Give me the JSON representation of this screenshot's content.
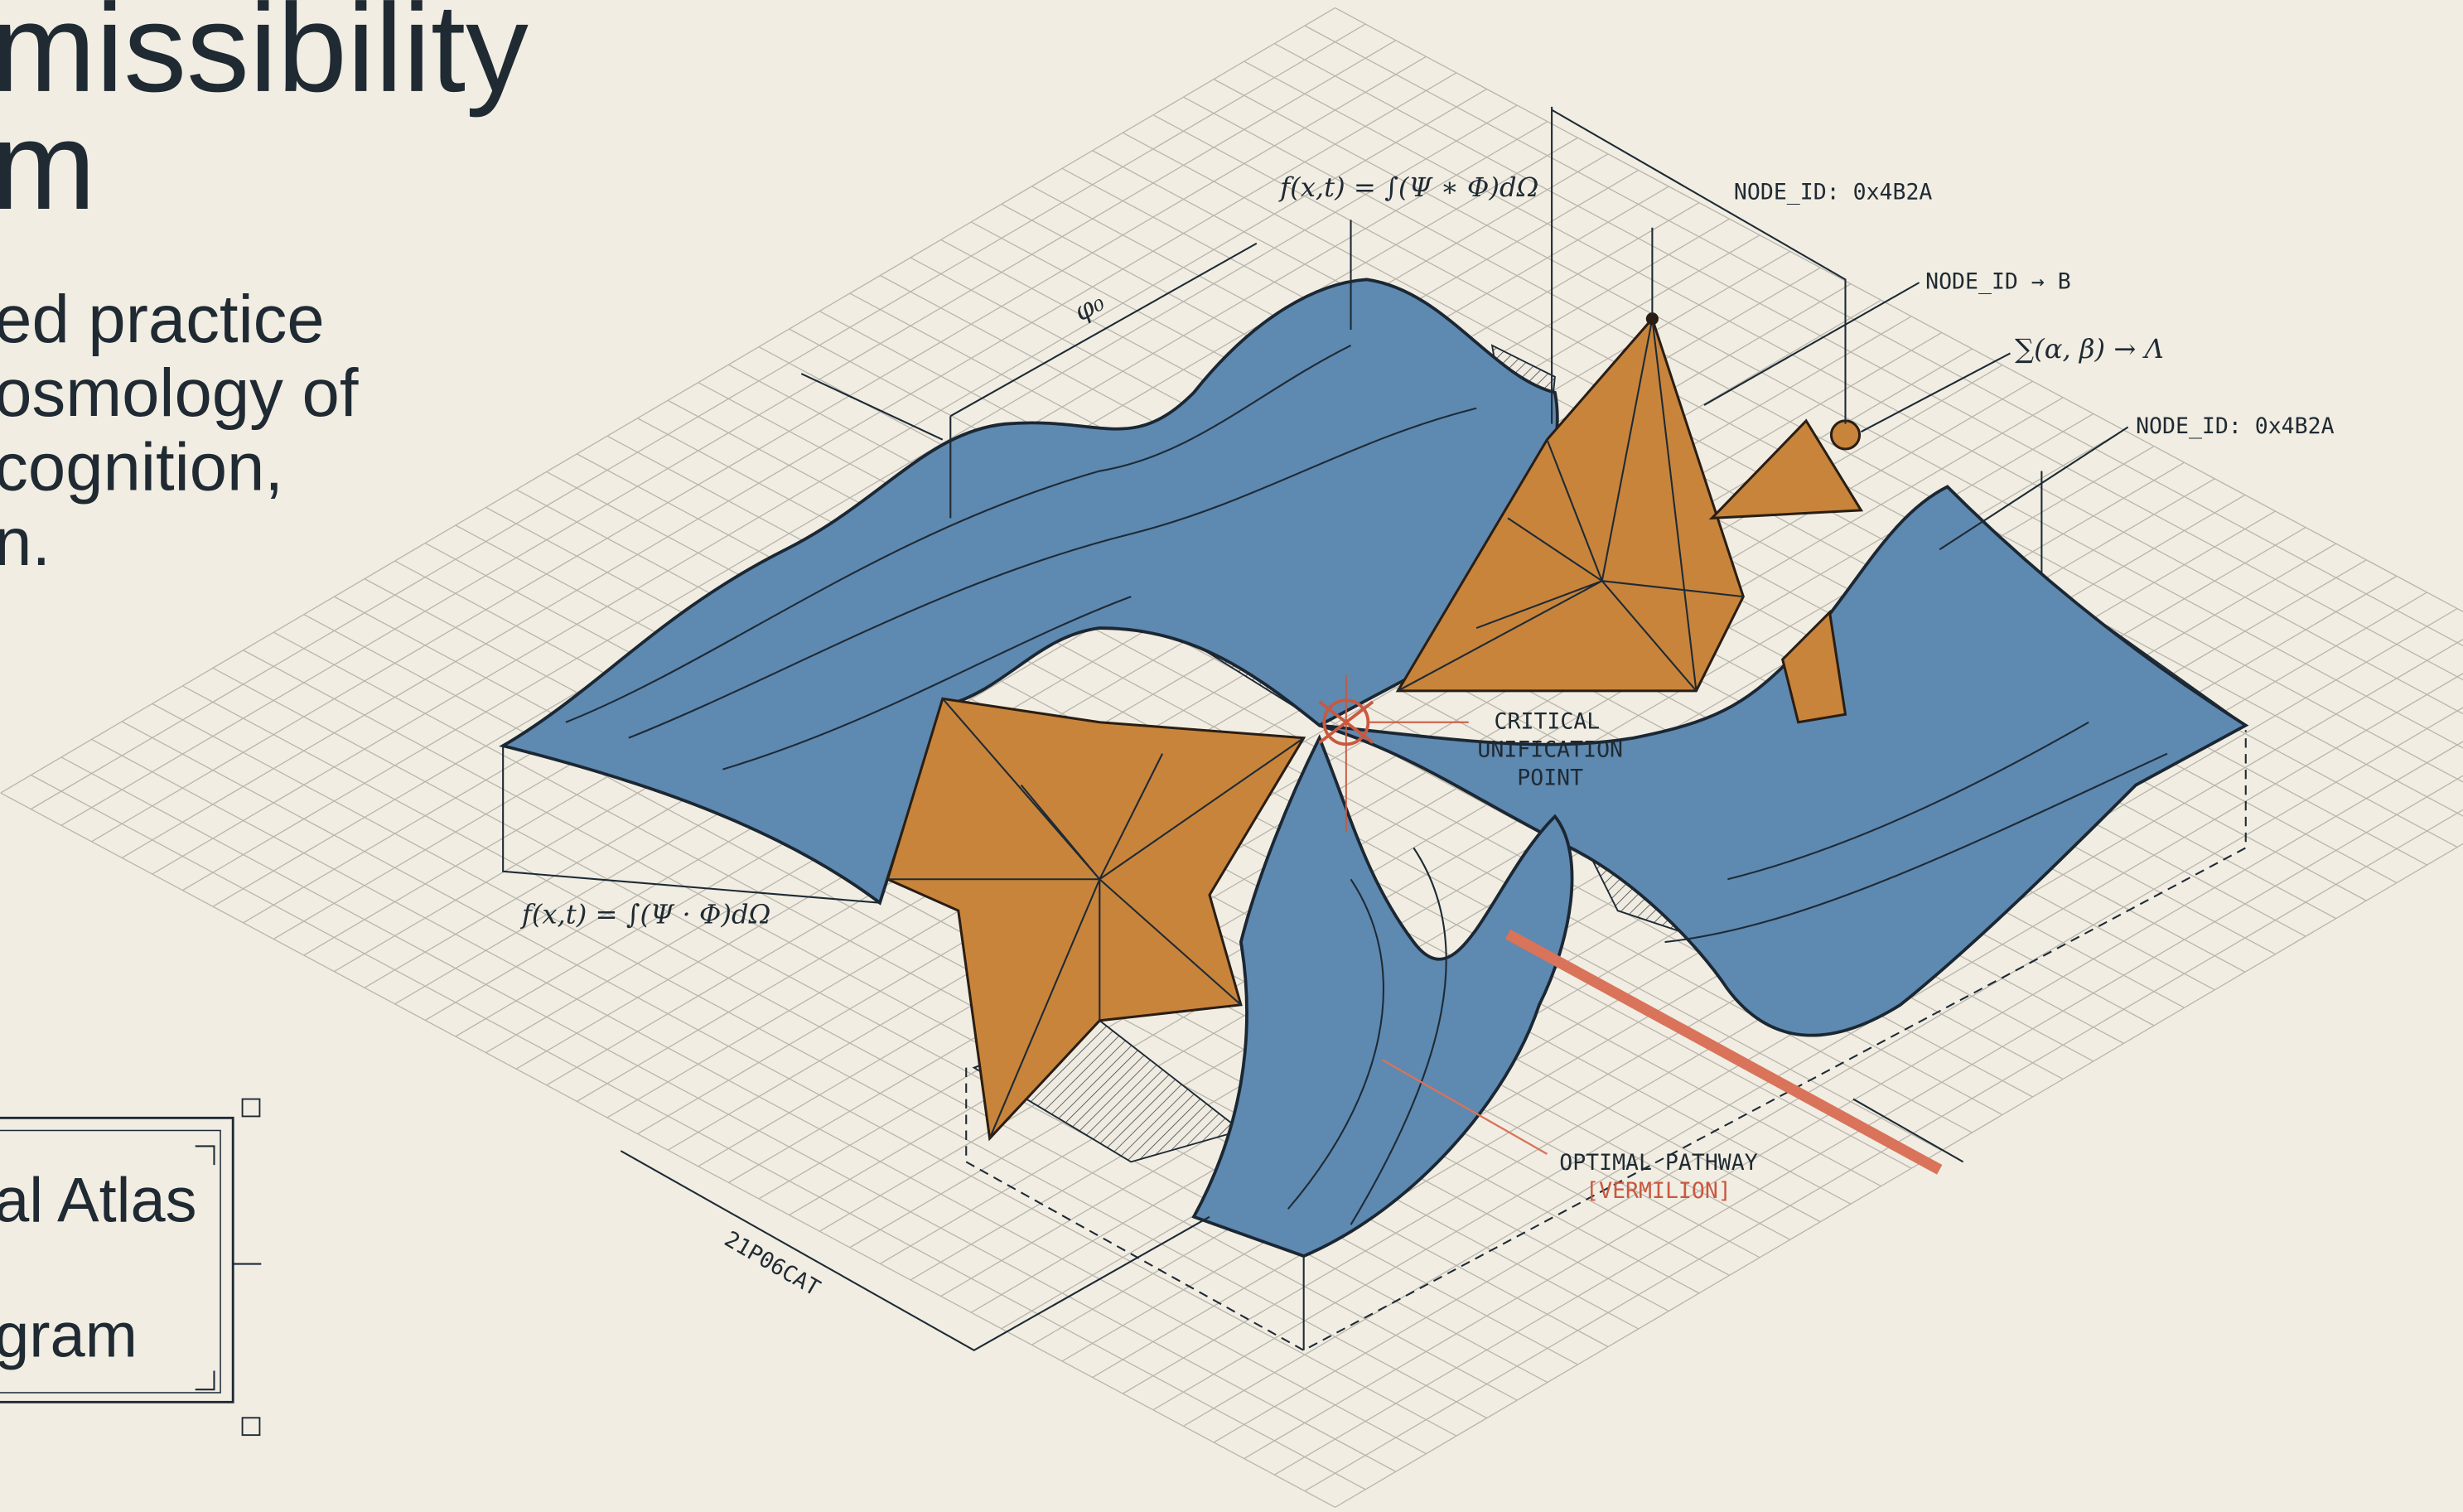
{
  "title": [
    "missibility",
    "m"
  ],
  "description": [
    "ed practice",
    "osmology of",
    "cognition,",
    "n."
  ],
  "box": [
    "al Atlas",
    "gram"
  ],
  "annotations": {
    "formula_top": "f(x,t) = ∫(Ψ ∗ Φ)dΩ",
    "formula_left": "f(x,t) = ∫(Ψ · Φ)dΩ",
    "node_top": "NODE_ID: 0x4B2A",
    "node_b": "NODE_ID → B",
    "sum": "∑(α, β) → Λ",
    "node_right": "NODE_ID: 0x4B2A",
    "critical": [
      "CRITICAL",
      "UNIFICATION",
      "POINT"
    ],
    "pathway": "OPTIMAL PATHWAY",
    "pathway_color": "[VERMILION]",
    "phi": "φ₀",
    "dimension": "21P06CAT"
  }
}
